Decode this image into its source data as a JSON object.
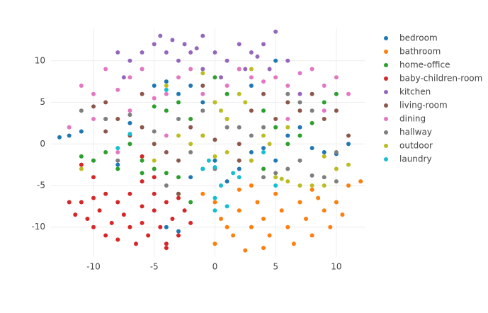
{
  "chart_data": {
    "type": "scatter",
    "xlim": [
      -13.5,
      12.4
    ],
    "ylim": [
      -13.6,
      13.9
    ],
    "xticks": [
      -10,
      -5,
      0,
      5,
      10
    ],
    "yticks": [
      -10,
      -5,
      0,
      5,
      10
    ],
    "grid": true,
    "legend": "right",
    "series": [
      {
        "name": "bedroom",
        "color": "#1f77b4",
        "x": [
          -12.8,
          -12,
          -11,
          -9,
          -7,
          -5,
          -4,
          -3,
          -2,
          -1,
          -2,
          -1,
          0,
          1,
          2,
          3,
          4,
          5,
          6,
          7,
          8,
          9,
          10,
          11,
          3,
          -4,
          -3,
          5,
          -8,
          -10
        ],
        "values": [
          0.8,
          1,
          1.5,
          3,
          2.5,
          7,
          7.5,
          6,
          7,
          5,
          -4,
          -3,
          -2,
          -4.5,
          -3,
          -1,
          -0.5,
          -2,
          1,
          2,
          -0.5,
          -1,
          -1.2,
          0,
          7,
          -10,
          -10.5,
          10,
          -2.5,
          -2
        ]
      },
      {
        "name": "bathroom",
        "color": "#ff7f0e",
        "x": [
          -1,
          0,
          0.5,
          1,
          0,
          1.5,
          2,
          2.5,
          3,
          3.5,
          4,
          4.5,
          5,
          5.5,
          6,
          6.5,
          7,
          7.5,
          8,
          8.5,
          9,
          9.5,
          10,
          10.5,
          11,
          12,
          2,
          3,
          4,
          8
        ],
        "values": [
          -6,
          -7,
          -9,
          -10,
          -12,
          -11,
          -8,
          -12.8,
          -10,
          -7,
          -9,
          -11,
          -6,
          -8,
          -10,
          -12,
          -7,
          -9,
          -11,
          -6.5,
          -8,
          -10,
          -7,
          -8.5,
          -5,
          -4.5,
          -5.5,
          -5,
          -12.5,
          -5.5
        ]
      },
      {
        "name": "home-office",
        "color": "#2ca02c",
        "x": [
          -11,
          -10,
          -9,
          -8,
          -7,
          -6,
          -5,
          -4,
          -3,
          -5,
          -4,
          -3,
          -2,
          0,
          1,
          4,
          5,
          6,
          7,
          8,
          9,
          10,
          3,
          4,
          -2,
          -3,
          2,
          -6
        ],
        "values": [
          -1.5,
          -2,
          -1,
          -3,
          0,
          -2,
          -3,
          -3.5,
          -4,
          4.5,
          4,
          5,
          3,
          8,
          6,
          4,
          2,
          0,
          1,
          2.5,
          5,
          6,
          -2,
          -3,
          -7,
          -6,
          9,
          -3.5
        ]
      },
      {
        "name": "baby-children-room",
        "color": "#d62728",
        "x": [
          -12,
          -11.5,
          -11,
          -10.5,
          -10,
          -10,
          -9.5,
          -9,
          -9,
          -8.5,
          -8,
          -8,
          -7.5,
          -7,
          -7,
          -6.5,
          -6,
          -6,
          -5.5,
          -5,
          -5,
          -4.5,
          -4,
          -4,
          -3.5,
          -3,
          -3,
          -2.5,
          -2,
          -5,
          -6,
          -10,
          -11,
          -6,
          -4
        ],
        "values": [
          -7,
          -8.5,
          -7,
          -9,
          -10,
          -6.5,
          -8,
          -11,
          -6,
          -9.5,
          -7,
          -11.5,
          -8.5,
          -6,
          -10,
          -12,
          -7.5,
          -9.5,
          -11,
          -6,
          -8,
          -10,
          -12,
          -7,
          -9,
          -11,
          -6.5,
          -8,
          -9.5,
          -4,
          -4.5,
          -4,
          -2.5,
          -1.5,
          -12.5
        ]
      },
      {
        "name": "kitchen",
        "color": "#9467bd",
        "x": [
          -7,
          -6,
          -5,
          -4.5,
          -4,
          -3.5,
          -3,
          -2.5,
          -2,
          -1,
          -1,
          0,
          0.5,
          1,
          2,
          2.5,
          3,
          4,
          4.5,
          5,
          3.5,
          -6,
          -8,
          -7.5,
          6,
          7,
          -1.5
        ],
        "values": [
          10,
          11,
          12,
          13,
          11,
          12.5,
          10,
          12,
          11,
          13,
          9,
          11,
          8,
          10,
          12,
          9,
          11,
          12,
          9,
          13.5,
          10.5,
          9,
          11,
          8,
          10,
          6,
          11.5
        ]
      },
      {
        "name": "living-room",
        "color": "#8c564b",
        "x": [
          -10,
          -9,
          -8,
          -7,
          -6,
          -5,
          -4,
          -3,
          -2,
          -1,
          0,
          1,
          2,
          3,
          4,
          5,
          6,
          7,
          8,
          9,
          10,
          11,
          -9,
          -3,
          -6,
          -1,
          2
        ],
        "values": [
          4.5,
          5,
          3,
          1,
          2,
          0,
          -1,
          -2,
          2,
          1,
          0.5,
          3,
          0,
          4,
          6,
          3,
          5,
          4,
          6,
          3,
          4,
          1,
          1.5,
          -6,
          6,
          7,
          -2
        ]
      },
      {
        "name": "dining",
        "color": "#e377c2",
        "x": [
          -11,
          -10,
          -9,
          -8,
          -7,
          -6,
          -5,
          -4,
          -3,
          -2,
          -1,
          0,
          1,
          2,
          3,
          4,
          5,
          6,
          7,
          8,
          9,
          10,
          11,
          -7,
          -10,
          -12,
          -8,
          -4,
          6,
          9
        ],
        "values": [
          7,
          6,
          9,
          6.5,
          8,
          9,
          5.5,
          6,
          8,
          9,
          6,
          5,
          7,
          9,
          8,
          7.5,
          8,
          7,
          8.5,
          9,
          7,
          8,
          6,
          4,
          3,
          2,
          -1,
          1,
          3,
          4
        ]
      },
      {
        "name": "hallway",
        "color": "#7f7f7f",
        "x": [
          -11,
          -9,
          -7,
          -5,
          -3,
          -1,
          1,
          3,
          4,
          5,
          6,
          7,
          8,
          9,
          10,
          10,
          2,
          0,
          -2,
          4,
          6,
          8,
          -4,
          -8,
          7
        ],
        "values": [
          4,
          3,
          3.5,
          1.5,
          3,
          4,
          2,
          1,
          -4,
          -3.5,
          -3,
          -2,
          -3.8,
          -4,
          -4.5,
          -1,
          2,
          -3,
          -1,
          2,
          6,
          4,
          -5,
          -2,
          5
        ]
      },
      {
        "name": "outdoor",
        "color": "#bcbd22",
        "x": [
          -1,
          0,
          0.5,
          1,
          2,
          2.5,
          -2,
          0,
          1,
          3,
          4,
          4.5,
          5,
          5.5,
          6,
          7,
          8,
          9,
          10,
          -3,
          -4,
          -1,
          3,
          9,
          11,
          -11,
          -5,
          6
        ],
        "values": [
          1,
          5,
          4,
          3,
          6,
          5,
          0,
          -1.5,
          -1,
          -2,
          1,
          0,
          -4,
          -4.2,
          -4.5,
          -5,
          -5,
          -5,
          -3,
          1,
          7,
          8.5,
          9,
          -1.5,
          -2.5,
          -3,
          -2,
          2
        ]
      },
      {
        "name": "laundry",
        "color": "#17becf",
        "x": [
          -1,
          0,
          0,
          0.5,
          1,
          1.5,
          2,
          4,
          -0.5,
          0,
          5,
          -4,
          -7,
          -8
        ],
        "values": [
          -3,
          -2.8,
          -6.5,
          -5,
          -7.5,
          -3.5,
          -4,
          -1,
          -2,
          -8,
          -5,
          6.5,
          1.2,
          -0.5
        ]
      }
    ]
  }
}
